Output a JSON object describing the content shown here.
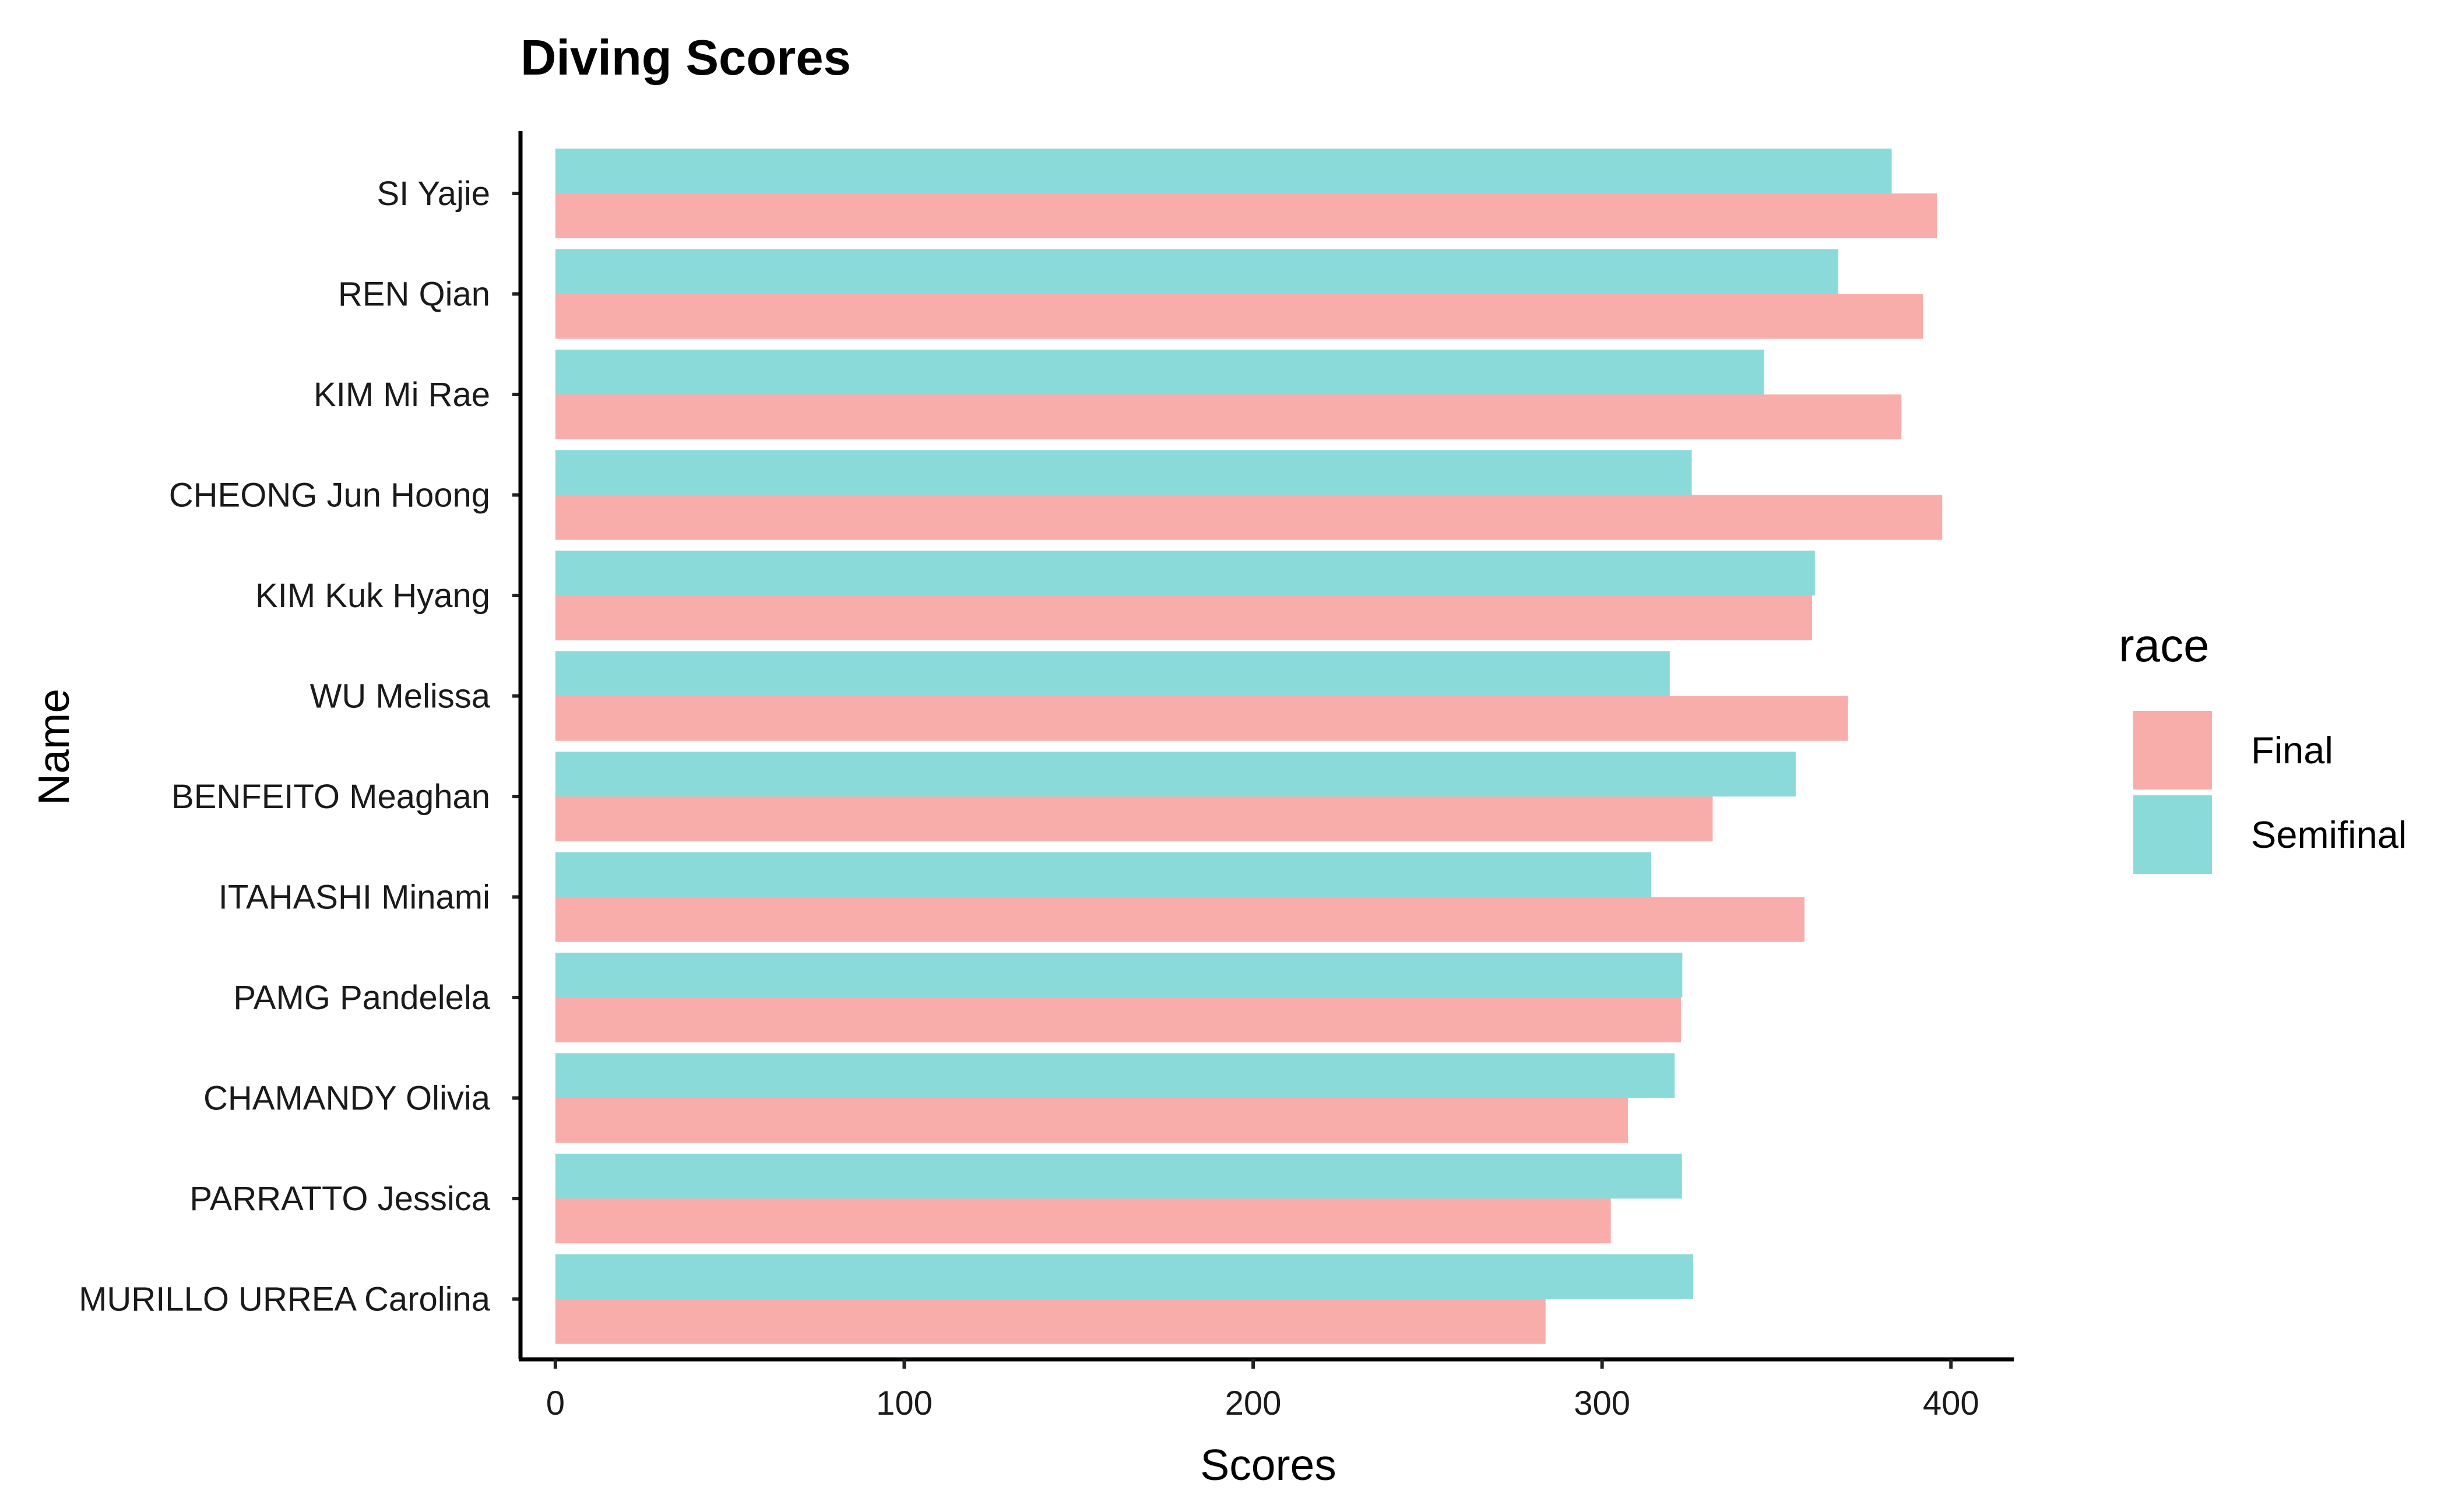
{
  "chart_data": {
    "type": "bar",
    "orientation": "horizontal",
    "title": "Diving Scores",
    "xlabel": "Scores",
    "ylabel": "Name",
    "xlim": [
      -10,
      418
    ],
    "xticks": [
      0,
      100,
      200,
      300,
      400
    ],
    "grid": false,
    "legend": {
      "title": "race",
      "placement": "right",
      "entries": [
        "Final",
        "Semifinal"
      ]
    },
    "categories": [
      "SI Yajie",
      "REN Qian",
      "KIM Mi Rae",
      "CHEONG Jun Hoong",
      "KIM Kuk Hyang",
      "WU Melissa",
      "BENFEITO Meaghan",
      "ITAHASHI Minami",
      "PAMG Pandelela",
      "CHAMANDY Olivia",
      "PARRATTO Jessica",
      "MURILLO URREA Carolina"
    ],
    "series": [
      {
        "name": "Final",
        "color": "#F8ADAA",
        "values": [
          396.0,
          392.0,
          385.8,
          397.5,
          360.2,
          370.5,
          331.7,
          358.0,
          322.6,
          307.4,
          302.5,
          283.8
        ]
      },
      {
        "name": "Semifinal",
        "color": "#8BDADA",
        "values": [
          383.0,
          367.7,
          346.4,
          325.7,
          361.0,
          319.4,
          355.5,
          314.1,
          323.0,
          320.8,
          322.9,
          326.1
        ]
      }
    ]
  }
}
